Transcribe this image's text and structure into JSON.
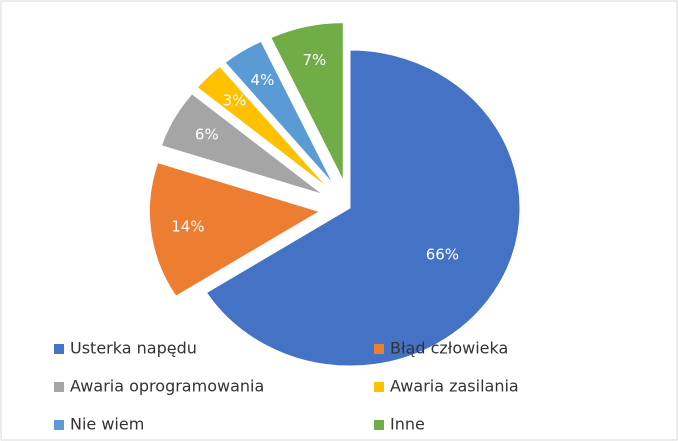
{
  "chart_data": {
    "type": "pie",
    "categories": [
      "Usterka napędu",
      "Błąd człowieka",
      "Awaria oprogramowania",
      "Awaria zasilania",
      "Nie wiem",
      "Inne"
    ],
    "values": [
      66,
      14,
      6,
      3,
      4,
      7
    ],
    "value_labels": [
      "66%",
      "14%",
      "6%",
      "3%",
      "4%",
      "7%"
    ],
    "colors": [
      "#4472c4",
      "#ed7d31",
      "#a5a5a5",
      "#ffc000",
      "#5b9bd5",
      "#70ad47"
    ],
    "legend": "bottom"
  }
}
